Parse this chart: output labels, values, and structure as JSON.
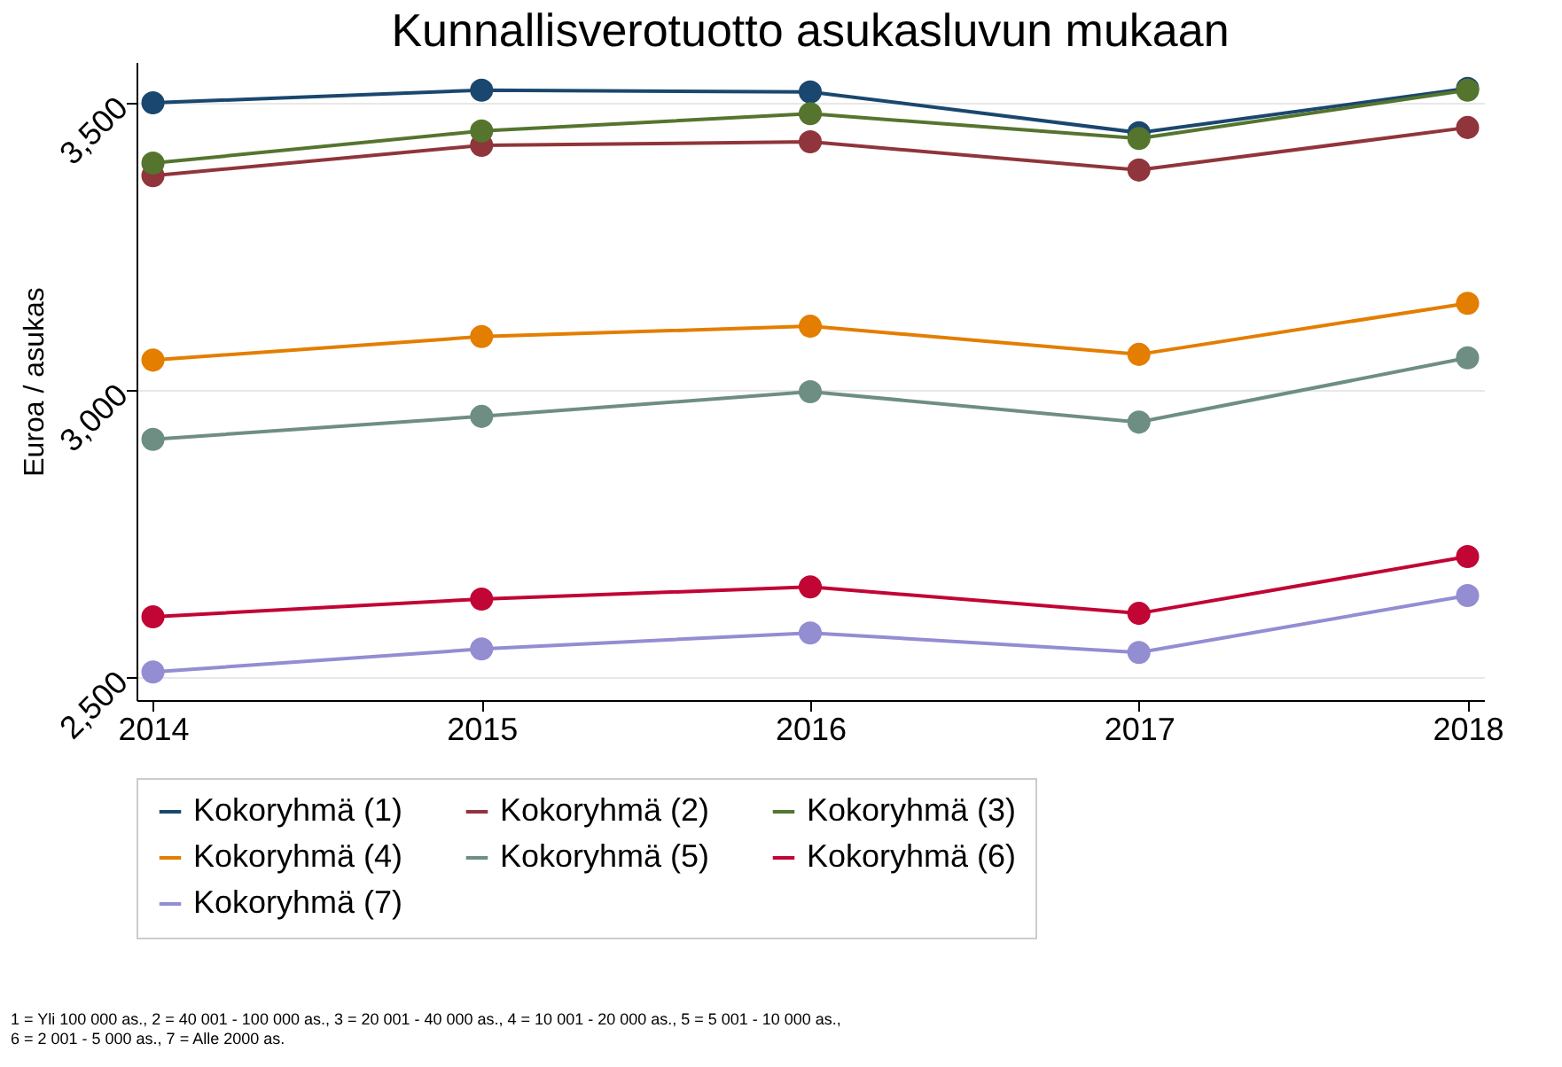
{
  "chart_data": {
    "type": "line",
    "title": "Kunnallisverotuotto asukasluvun mukaan",
    "ylabel": "Euroa / asukas",
    "x": [
      2014,
      2015,
      2016,
      2017,
      2018
    ],
    "xlim": [
      2013.95,
      2018.05
    ],
    "xticks": [
      2014,
      2015,
      2016,
      2017,
      2018
    ],
    "ylim": [
      2460,
      3571
    ],
    "yticks": [
      {
        "value": 2500,
        "label": "2,500"
      },
      {
        "value": 3000,
        "label": "3,000"
      },
      {
        "value": 3500,
        "label": "3,500"
      }
    ],
    "grid": "y",
    "legend": "bottom",
    "marker": "circle",
    "line_style": "solid",
    "series": [
      {
        "name": "Kokoryhmä (1)",
        "color": "#1a476f",
        "values": [
          3500,
          3522,
          3519,
          3448,
          3525
        ]
      },
      {
        "name": "Kokoryhmä (2)",
        "color": "#90353b",
        "values": [
          3373,
          3426,
          3432,
          3383,
          3457
        ]
      },
      {
        "name": "Kokoryhmä (3)",
        "color": "#55752f",
        "values": [
          3395,
          3451,
          3481,
          3438,
          3522
        ]
      },
      {
        "name": "Kokoryhmä (4)",
        "color": "#e37e00",
        "values": [
          3052,
          3093,
          3111,
          3062,
          3151
        ]
      },
      {
        "name": "Kokoryhmä (5)",
        "color": "#6e8e84",
        "values": [
          2914,
          2954,
          2997,
          2944,
          3056
        ]
      },
      {
        "name": "Kokoryhmä (6)",
        "color": "#c10534",
        "values": [
          2605,
          2636,
          2657,
          2611,
          2710
        ]
      },
      {
        "name": "Kokoryhmä (7)",
        "color": "#938dd2",
        "values": [
          2509,
          2549,
          2577,
          2543,
          2642
        ]
      }
    ],
    "annotations": [
      "1 = Yli 100 000 as., 2 = 40 001 - 100 000 as., 3 = 20 001 - 40 000 as., 4 = 10 001 - 20 000 as., 5 = 5 001 - 10 000 as.,",
      "6 = 2 001 - 5 000 as., 7 = Alle 2000 as."
    ]
  }
}
